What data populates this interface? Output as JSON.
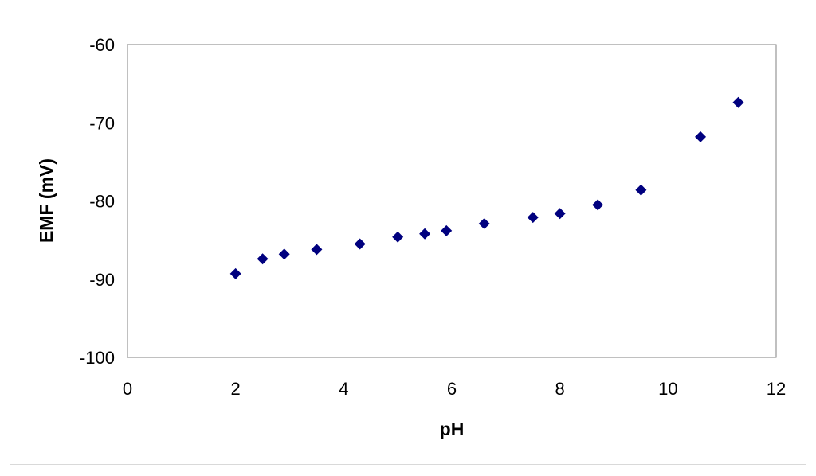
{
  "chart_data": {
    "type": "scatter",
    "title": "",
    "xlabel": "pH",
    "ylabel": "EMF (mV)",
    "xlim": [
      0,
      12
    ],
    "ylim": [
      -100,
      -60
    ],
    "x_ticks": [
      0,
      2,
      4,
      6,
      8,
      10,
      12
    ],
    "y_ticks": [
      -60,
      -70,
      -80,
      -90,
      -100
    ],
    "grid": false,
    "legend": "none",
    "marker": "diamond",
    "marker_color": "#00007f",
    "series": [
      {
        "points": [
          {
            "x": 2.0,
            "y": -89.3
          },
          {
            "x": 2.5,
            "y": -87.4
          },
          {
            "x": 2.9,
            "y": -86.8
          },
          {
            "x": 3.5,
            "y": -86.2
          },
          {
            "x": 4.3,
            "y": -85.5
          },
          {
            "x": 5.0,
            "y": -84.6
          },
          {
            "x": 5.5,
            "y": -84.2
          },
          {
            "x": 5.9,
            "y": -83.8
          },
          {
            "x": 6.6,
            "y": -82.9
          },
          {
            "x": 7.5,
            "y": -82.1
          },
          {
            "x": 8.0,
            "y": -81.6
          },
          {
            "x": 8.7,
            "y": -80.5
          },
          {
            "x": 9.5,
            "y": -78.6
          },
          {
            "x": 10.6,
            "y": -71.8
          },
          {
            "x": 11.3,
            "y": -67.4
          }
        ]
      }
    ]
  }
}
